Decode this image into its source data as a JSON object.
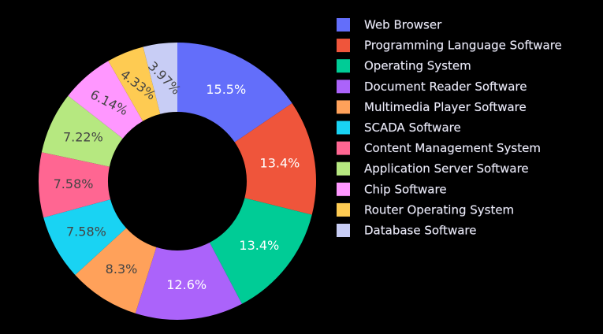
{
  "chart_data": {
    "type": "pie",
    "hole": 0.5,
    "sort": "descending",
    "direction": "clockwise",
    "legend_position": "right",
    "title": "",
    "slices": [
      {
        "label": "Web Browser",
        "value": 15.5,
        "text": "15.5%",
        "color": "#636efa",
        "text_color": "#ffffff"
      },
      {
        "label": "Programming Language Software",
        "value": 13.4,
        "text": "13.4%",
        "color": "#ef553b",
        "text_color": "#ffffff"
      },
      {
        "label": "Operating System",
        "value": 13.4,
        "text": "13.4%",
        "color": "#00cc96",
        "text_color": "#ffffff"
      },
      {
        "label": "Document Reader Software",
        "value": 12.6,
        "text": "12.6%",
        "color": "#ab63fa",
        "text_color": "#ffffff"
      },
      {
        "label": "Multimedia Player Software",
        "value": 8.3,
        "text": "8.3%",
        "color": "#ffa15a",
        "text_color": "#444444"
      },
      {
        "label": "SCADA Software",
        "value": 7.58,
        "text": "7.58%",
        "color": "#19d3f3",
        "text_color": "#444444"
      },
      {
        "label": "Content Management System",
        "value": 7.58,
        "text": "7.58%",
        "color": "#ff6692",
        "text_color": "#444444"
      },
      {
        "label": "Application Server Software",
        "value": 7.22,
        "text": "7.22%",
        "color": "#b6e880",
        "text_color": "#444444"
      },
      {
        "label": "Chip Software",
        "value": 6.14,
        "text": "6.14%",
        "color": "#ff97ff",
        "text_color": "#444444"
      },
      {
        "label": "Router Operating System",
        "value": 4.33,
        "text": "4.33%",
        "color": "#fecb52",
        "text_color": "#444444"
      },
      {
        "label": "Database Software",
        "value": 3.97,
        "text": "3.97%",
        "color": "#c8cdf5",
        "text_color": "#444444"
      }
    ]
  }
}
